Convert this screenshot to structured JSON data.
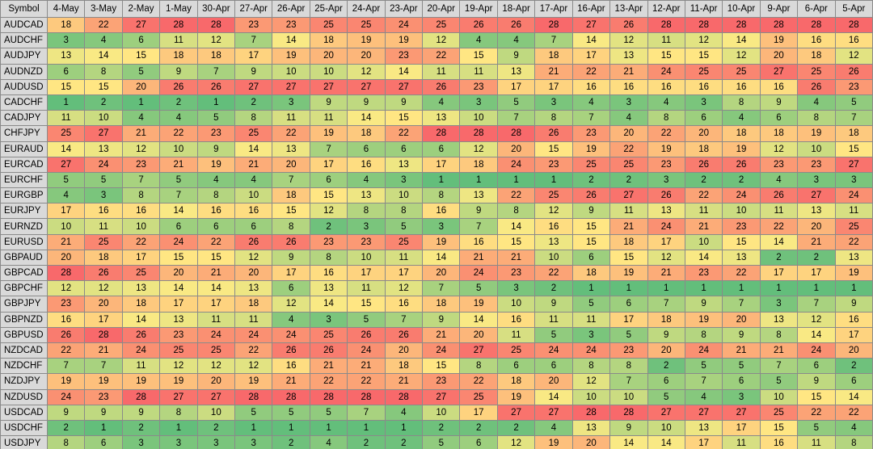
{
  "table": {
    "header": [
      "Symbol",
      "4-May",
      "3-May",
      "2-May",
      "1-May",
      "30-Apr",
      "27-Apr",
      "26-Apr",
      "25-Apr",
      "24-Apr",
      "23-Apr",
      "20-Apr",
      "19-Apr",
      "18-Apr",
      "17-Apr",
      "16-Apr",
      "13-Apr",
      "12-Apr",
      "11-Apr",
      "10-Apr",
      "9-Apr",
      "6-Apr",
      "5-Apr"
    ],
    "rows": [
      [
        "AUDCAD",
        18,
        22,
        27,
        28,
        28,
        23,
        23,
        25,
        25,
        24,
        25,
        26,
        26,
        28,
        27,
        26,
        28,
        28,
        28,
        28,
        28,
        28
      ],
      [
        "AUDCHF",
        3,
        4,
        6,
        11,
        12,
        7,
        14,
        18,
        19,
        19,
        12,
        4,
        4,
        7,
        14,
        12,
        11,
        12,
        14,
        19,
        16,
        16
      ],
      [
        "AUDJPY",
        13,
        14,
        15,
        18,
        18,
        17,
        19,
        20,
        20,
        23,
        22,
        15,
        9,
        18,
        17,
        13,
        15,
        15,
        12,
        20,
        18,
        12
      ],
      [
        "AUDNZD",
        6,
        8,
        5,
        9,
        7,
        9,
        10,
        10,
        12,
        14,
        11,
        11,
        13,
        21,
        22,
        21,
        24,
        25,
        25,
        27,
        25,
        26
      ],
      [
        "AUDUSD",
        15,
        15,
        20,
        26,
        26,
        27,
        27,
        27,
        27,
        27,
        26,
        23,
        17,
        17,
        16,
        16,
        16,
        16,
        16,
        16,
        26,
        23
      ],
      [
        "CADCHF",
        1,
        2,
        1,
        2,
        1,
        2,
        3,
        9,
        9,
        9,
        4,
        3,
        5,
        3,
        4,
        3,
        4,
        3,
        8,
        9,
        4,
        5
      ],
      [
        "CADJPY",
        11,
        10,
        4,
        4,
        5,
        8,
        11,
        11,
        14,
        15,
        13,
        10,
        7,
        8,
        7,
        4,
        8,
        6,
        4,
        6,
        8,
        7
      ],
      [
        "CHFJPY",
        25,
        27,
        21,
        22,
        23,
        25,
        22,
        19,
        18,
        22,
        28,
        28,
        28,
        26,
        23,
        20,
        22,
        20,
        18,
        18,
        19,
        18
      ],
      [
        "EURAUD",
        14,
        13,
        12,
        10,
        9,
        14,
        13,
        7,
        6,
        6,
        6,
        12,
        20,
        15,
        19,
        22,
        19,
        18,
        19,
        12,
        10,
        15
      ],
      [
        "EURCAD",
        27,
        24,
        23,
        21,
        19,
        21,
        20,
        17,
        16,
        13,
        17,
        18,
        24,
        23,
        25,
        25,
        23,
        26,
        26,
        23,
        23,
        27
      ],
      [
        "EURCHF",
        5,
        5,
        7,
        5,
        4,
        4,
        7,
        6,
        4,
        3,
        1,
        1,
        1,
        1,
        2,
        2,
        3,
        2,
        2,
        4,
        3,
        3
      ],
      [
        "EURGBP",
        4,
        3,
        8,
        7,
        8,
        10,
        18,
        15,
        13,
        10,
        8,
        13,
        22,
        25,
        26,
        27,
        26,
        22,
        24,
        26,
        27,
        24
      ],
      [
        "EURJPY",
        17,
        16,
        16,
        14,
        16,
        16,
        15,
        12,
        8,
        8,
        16,
        9,
        8,
        12,
        9,
        11,
        13,
        11,
        10,
        11,
        13,
        11
      ],
      [
        "EURNZD",
        10,
        11,
        10,
        6,
        6,
        6,
        8,
        2,
        3,
        5,
        3,
        7,
        14,
        16,
        15,
        21,
        24,
        21,
        23,
        22,
        20,
        25
      ],
      [
        "EURUSD",
        21,
        25,
        22,
        24,
        22,
        26,
        26,
        23,
        23,
        25,
        19,
        16,
        15,
        13,
        15,
        18,
        17,
        10,
        15,
        14,
        21,
        22
      ],
      [
        "GBPAUD",
        20,
        18,
        17,
        15,
        15,
        12,
        9,
        8,
        10,
        11,
        14,
        21,
        21,
        10,
        6,
        15,
        12,
        14,
        13,
        2,
        2,
        13
      ],
      [
        "GBPCAD",
        28,
        26,
        25,
        20,
        21,
        20,
        17,
        16,
        17,
        17,
        20,
        24,
        23,
        22,
        18,
        19,
        21,
        23,
        22,
        17,
        17,
        19
      ],
      [
        "GBPCHF",
        12,
        12,
        13,
        14,
        14,
        13,
        6,
        13,
        11,
        12,
        7,
        5,
        3,
        2,
        1,
        1,
        1,
        1,
        1,
        1,
        1,
        1
      ],
      [
        "GBPJPY",
        23,
        20,
        18,
        17,
        17,
        18,
        12,
        14,
        15,
        16,
        18,
        19,
        10,
        9,
        5,
        6,
        7,
        9,
        7,
        3,
        7,
        9
      ],
      [
        "GBPNZD",
        16,
        17,
        14,
        13,
        11,
        11,
        4,
        3,
        5,
        7,
        9,
        14,
        16,
        11,
        11,
        17,
        18,
        19,
        20,
        13,
        12,
        16
      ],
      [
        "GBPUSD",
        26,
        28,
        26,
        23,
        24,
        24,
        24,
        25,
        26,
        26,
        21,
        20,
        11,
        5,
        3,
        5,
        9,
        8,
        9,
        8,
        14,
        17
      ],
      [
        "NZDCAD",
        22,
        21,
        24,
        25,
        25,
        22,
        26,
        26,
        24,
        20,
        24,
        27,
        25,
        24,
        24,
        23,
        20,
        24,
        21,
        21,
        24,
        20
      ],
      [
        "NZDCHF",
        7,
        7,
        11,
        12,
        12,
        12,
        16,
        21,
        21,
        18,
        15,
        8,
        6,
        6,
        8,
        8,
        2,
        5,
        5,
        7,
        6,
        2
      ],
      [
        "NZDJPY",
        19,
        19,
        19,
        19,
        20,
        19,
        21,
        22,
        22,
        21,
        23,
        22,
        18,
        20,
        12,
        7,
        6,
        7,
        6,
        5,
        9,
        6
      ],
      [
        "NZDUSD",
        24,
        23,
        28,
        27,
        27,
        28,
        28,
        28,
        28,
        28,
        27,
        25,
        19,
        14,
        10,
        10,
        5,
        4,
        3,
        10,
        15,
        14
      ],
      [
        "USDCAD",
        9,
        9,
        9,
        8,
        10,
        5,
        5,
        5,
        7,
        4,
        10,
        17,
        27,
        27,
        28,
        28,
        27,
        27,
        27,
        25,
        22,
        22
      ],
      [
        "USDCHF",
        2,
        1,
        2,
        1,
        2,
        1,
        1,
        1,
        1,
        1,
        2,
        2,
        2,
        4,
        13,
        9,
        10,
        13,
        17,
        15,
        5,
        4
      ],
      [
        "USDJPY",
        8,
        6,
        3,
        3,
        3,
        3,
        2,
        4,
        2,
        2,
        5,
        6,
        12,
        19,
        20,
        14,
        14,
        17,
        11,
        16,
        11,
        8
      ]
    ]
  }
}
